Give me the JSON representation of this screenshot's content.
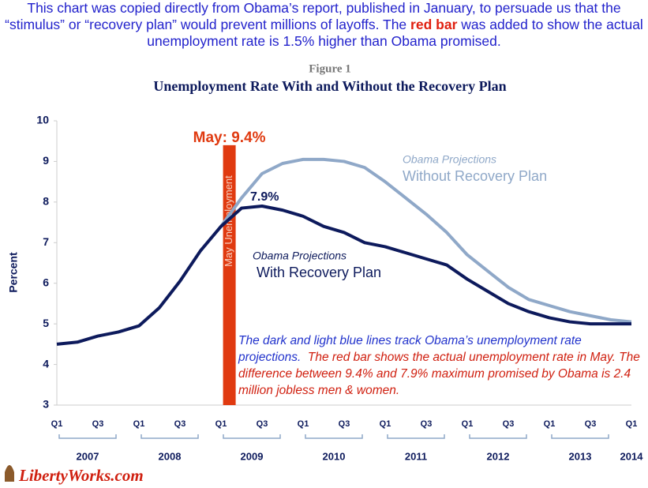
{
  "header": {
    "part1": "This chart was copied directly from Obama’s report, published in January, to persuade us that the “stimulus” or “recovery plan” would prevent millions of layoffs.  The",
    "part2": "red bar",
    "part3": "was added to show the actual unemployment rate is 1.5% higher than Obama promised."
  },
  "chart_data": {
    "type": "line",
    "figure_label": "Figure 1",
    "title": "Unemployment Rate With and Without the Recovery Plan",
    "y_label": "Percent",
    "categories": [
      "Q1",
      null,
      "Q3",
      null,
      "Q1",
      null,
      "Q3",
      null,
      "Q1",
      null,
      "Q3",
      null,
      "Q1",
      null,
      "Q3",
      null,
      "Q1",
      null,
      "Q3",
      null,
      "Q1",
      null,
      "Q3",
      null,
      "Q1",
      null,
      "Q3",
      null,
      "Q1"
    ],
    "year_labels": [
      "2007",
      "2008",
      "2009",
      "2010",
      "2011",
      "2012",
      "2013",
      "2014"
    ],
    "series": [
      {
        "name_prefix": "Obama Projections",
        "name": "With Recovery Plan",
        "color": "#0d1a5c",
        "values": [
          4.5,
          4.55,
          4.7,
          4.8,
          4.95,
          5.4,
          6.05,
          6.8,
          7.4,
          7.85,
          7.9,
          7.8,
          7.65,
          7.4,
          7.25,
          7.0,
          6.9,
          6.75,
          6.6,
          6.45,
          6.1,
          5.8,
          5.5,
          5.3,
          5.15,
          5.05,
          5.0,
          5.0,
          5.0
        ]
      },
      {
        "name_prefix": "Obama Projections",
        "name": "Without Recovery Plan",
        "color": "#8fa8c8",
        "values": [
          null,
          null,
          null,
          null,
          null,
          null,
          null,
          null,
          7.4,
          8.1,
          8.7,
          8.95,
          9.05,
          9.05,
          9.0,
          8.85,
          8.5,
          8.1,
          7.7,
          7.25,
          6.7,
          6.3,
          5.9,
          5.6,
          5.45,
          5.3,
          5.2,
          5.1,
          5.05
        ]
      }
    ],
    "peak_label": "7.9%",
    "red_bar": {
      "value": 9.4,
      "label": "May: 9.4%",
      "text": "May Unemployment",
      "color": "#e03a10"
    },
    "note": {
      "blue": "The dark and light blue lines track Obama’s unemployment rate projections.",
      "red": "The red bar shows the actual unemployment rate in May. The difference between 9.4% and 7.9% maximum promised by Obama is 2.4 million jobless men & women."
    },
    "ylim": [
      3,
      10
    ],
    "yticks": [
      3,
      4,
      5,
      6,
      7,
      8,
      9,
      10
    ],
    "grid": false
  },
  "logo": "LibertyWorks.com"
}
